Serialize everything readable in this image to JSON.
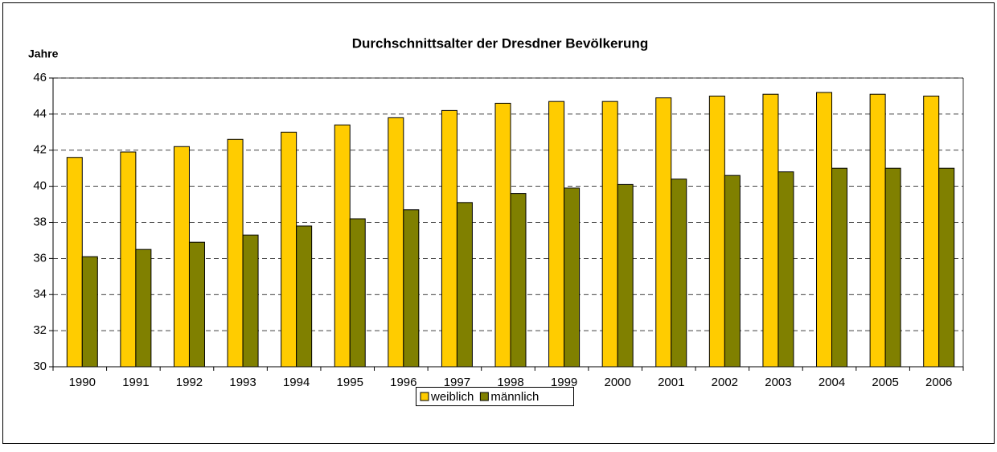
{
  "chart_data": {
    "type": "bar",
    "title": "Durchschnittsalter der Dresdner Bevölkerung",
    "y_label": "Jahre",
    "categories": [
      "1990",
      "1991",
      "1992",
      "1993",
      "1994",
      "1995",
      "1996",
      "1997",
      "1998",
      "1999",
      "2000",
      "2001",
      "2002",
      "2003",
      "2004",
      "2005",
      "2006"
    ],
    "series": [
      {
        "name": "weiblich",
        "color": "#ffcc00",
        "values": [
          41.6,
          41.9,
          42.2,
          42.6,
          43.0,
          43.4,
          43.8,
          44.2,
          44.6,
          44.7,
          44.7,
          44.9,
          45.0,
          45.1,
          45.2,
          45.1,
          45.0
        ]
      },
      {
        "name": "männlich",
        "color": "#808000",
        "values": [
          36.1,
          36.5,
          36.9,
          37.3,
          37.8,
          38.2,
          38.7,
          39.1,
          39.6,
          39.9,
          40.1,
          40.4,
          40.6,
          40.8,
          41.0,
          41.0,
          41.0
        ]
      }
    ],
    "ylim": [
      30,
      46
    ],
    "yticks": [
      30,
      32,
      34,
      36,
      38,
      40,
      42,
      44,
      46
    ],
    "grid": true,
    "legend": "bottom"
  }
}
